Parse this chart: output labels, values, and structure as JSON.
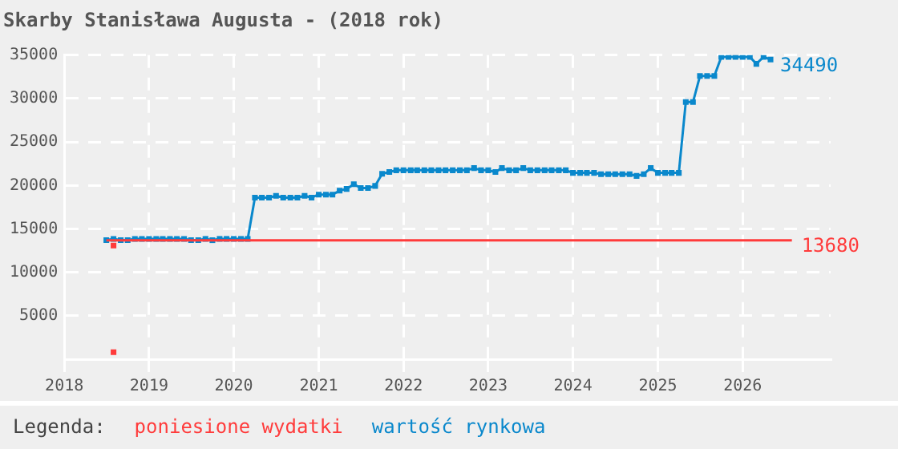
{
  "chart_data": {
    "type": "line",
    "title": "Skarby Stanisława Augusta - (2018 rok)",
    "legend_title": "Legenda:",
    "legend": "bottom",
    "grid": true,
    "xlim": [
      "2018-01-01",
      "2027-01-15"
    ],
    "xticks": [
      "2018",
      "2019",
      "2020",
      "2021",
      "2022",
      "2023",
      "2024",
      "2025",
      "2026"
    ],
    "ylim": [
      0,
      35000
    ],
    "yticks": [
      {
        "value": 0,
        "label": null
      },
      5000,
      10000,
      15000,
      20000,
      25000,
      30000,
      35000
    ],
    "series": [
      {
        "name": "poniesione wydatki",
        "color": "#ff3b3b",
        "marker": "none",
        "x": [
          "2018-07",
          "2026-08"
        ],
        "values": [
          13680,
          13680
        ],
        "value_labels": [
          null,
          "13680"
        ]
      },
      {
        "type": "scatter",
        "color": "#ff3b3b",
        "marker": "square",
        "x": [
          "2018-08",
          "2018-08"
        ],
        "values": [
          800,
          13080
        ]
      },
      {
        "name": "wartość rynkowa",
        "color": "#0a88cc",
        "marker": "square",
        "x": [
          "2018-07",
          "2018-08",
          "2018-09",
          "2018-10",
          "2018-11",
          "2018-12",
          "2019-01",
          "2019-02",
          "2019-03",
          "2019-04",
          "2019-05",
          "2019-06",
          "2019-07",
          "2019-08",
          "2019-09",
          "2019-10",
          "2019-11",
          "2019-12",
          "2020-01",
          "2020-02",
          "2020-03",
          "2020-04",
          "2020-05",
          "2020-06",
          "2020-07",
          "2020-08",
          "2020-09",
          "2020-10",
          "2020-11",
          "2020-12",
          "2021-01",
          "2021-02",
          "2021-03",
          "2021-04",
          "2021-05",
          "2021-06",
          "2021-07",
          "2021-08",
          "2021-09",
          "2021-10",
          "2021-11",
          "2021-12",
          "2022-01",
          "2022-02",
          "2022-03",
          "2022-04",
          "2022-05",
          "2022-06",
          "2022-07",
          "2022-08",
          "2022-09",
          "2022-10",
          "2022-11",
          "2022-12",
          "2023-01",
          "2023-02",
          "2023-03",
          "2023-04",
          "2023-05",
          "2023-06",
          "2023-07",
          "2023-08",
          "2023-09",
          "2023-10",
          "2023-11",
          "2023-12",
          "2024-01",
          "2024-02",
          "2024-03",
          "2024-04",
          "2024-05",
          "2024-06",
          "2024-07",
          "2024-08",
          "2024-09",
          "2024-10",
          "2024-11",
          "2024-12",
          "2025-01",
          "2025-02",
          "2025-03",
          "2025-04",
          "2025-05",
          "2025-06",
          "2025-07",
          "2025-08",
          "2025-09",
          "2025-10",
          "2025-11",
          "2025-12",
          "2026-01",
          "2026-02",
          "2026-03",
          "2026-04",
          "2026-05"
        ],
        "values": [
          13700,
          13850,
          13700,
          13700,
          13850,
          13850,
          13850,
          13850,
          13850,
          13850,
          13850,
          13850,
          13700,
          13700,
          13850,
          13700,
          13850,
          13850,
          13850,
          13850,
          13850,
          18600,
          18600,
          18600,
          18800,
          18600,
          18600,
          18600,
          18800,
          18600,
          18950,
          18950,
          18950,
          19400,
          19600,
          20150,
          19700,
          19700,
          19950,
          21350,
          21550,
          21750,
          21750,
          21750,
          21750,
          21750,
          21750,
          21750,
          21750,
          21750,
          21750,
          21750,
          22000,
          21750,
          21750,
          21550,
          22000,
          21750,
          21750,
          22000,
          21750,
          21750,
          21750,
          21750,
          21750,
          21750,
          21450,
          21450,
          21450,
          21450,
          21300,
          21300,
          21300,
          21300,
          21300,
          21100,
          21300,
          22000,
          21450,
          21450,
          21450,
          21450,
          29600,
          29600,
          32600,
          32600,
          32600,
          34800,
          34800,
          34800,
          34800,
          34800,
          34000,
          34800,
          34490
        ],
        "value_labels": [
          null,
          null,
          null,
          null,
          null,
          null,
          null,
          null,
          null,
          null,
          null,
          null,
          null,
          null,
          null,
          null,
          null,
          null,
          null,
          null,
          null,
          null,
          null,
          null,
          null,
          null,
          null,
          null,
          null,
          null,
          null,
          null,
          null,
          null,
          null,
          null,
          null,
          null,
          null,
          null,
          null,
          null,
          null,
          null,
          null,
          null,
          null,
          null,
          null,
          null,
          null,
          null,
          null,
          null,
          null,
          null,
          null,
          null,
          null,
          null,
          null,
          null,
          null,
          null,
          null,
          null,
          null,
          null,
          null,
          null,
          null,
          null,
          null,
          null,
          null,
          null,
          null,
          null,
          null,
          null,
          null,
          null,
          null,
          null,
          null,
          null,
          null,
          null,
          null,
          null,
          null,
          null,
          null,
          null,
          "34490"
        ]
      }
    ]
  }
}
